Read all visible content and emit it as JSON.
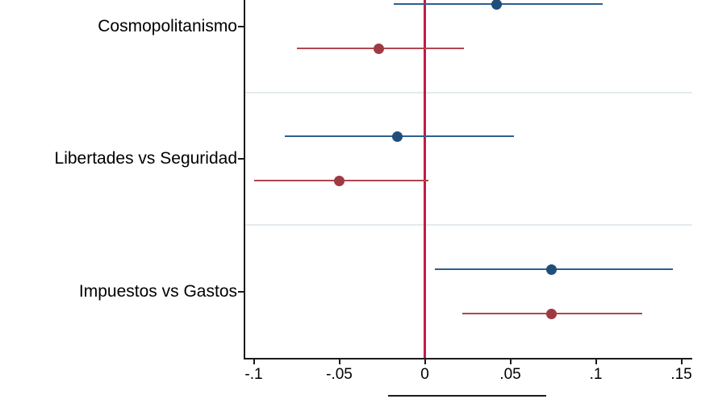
{
  "chart_data": {
    "type": "scatter",
    "subtype": "coefficient-plot-with-confidence-intervals",
    "title": "",
    "xlabel": "",
    "ylabel": "",
    "categories": [
      "Cosmopolitanismo",
      "Libertades vs Seguridad",
      "Impuestos vs Gastos"
    ],
    "series": [
      {
        "key": "navy",
        "line_color": "#2e5f8f",
        "marker_color": "#1f4e79",
        "points": [
          {
            "category": "Cosmopolitanismo",
            "estimate": 0.042,
            "ci_low": -0.018,
            "ci_high": 0.104
          },
          {
            "category": "Libertades vs Seguridad",
            "estimate": -0.016,
            "ci_low": -0.082,
            "ci_high": 0.052
          },
          {
            "category": "Impuestos vs Gastos",
            "estimate": 0.074,
            "ci_low": 0.006,
            "ci_high": 0.145
          }
        ]
      },
      {
        "key": "maroon",
        "line_color": "#ae4750",
        "marker_color": "#9e3a43",
        "points": [
          {
            "category": "Cosmopolitanismo",
            "estimate": -0.027,
            "ci_low": -0.075,
            "ci_high": 0.023
          },
          {
            "category": "Libertades vs Seguridad",
            "estimate": -0.05,
            "ci_low": -0.1,
            "ci_high": 0.002
          },
          {
            "category": "Impuestos vs Gastos",
            "estimate": 0.074,
            "ci_low": 0.022,
            "ci_high": 0.127
          }
        ]
      }
    ],
    "x_axis": {
      "tick_labels": [
        "-.1",
        "-.05",
        "0",
        ".05",
        ".1",
        ".15"
      ],
      "tick_values": [
        -0.1,
        -0.05,
        0,
        0.05,
        0.1,
        0.15
      ],
      "range": [
        -0.105,
        0.156
      ]
    },
    "zero_line": {
      "value": 0,
      "color": "#c41a44"
    },
    "grid": "horizontal separators between categories",
    "legend": "legend box cut off at bottom edge (only top border visible)"
  },
  "colors": {
    "background": "#ffffff",
    "axis": "#1b1b1b",
    "gridline": "#e4ebee",
    "zero_line": "#c41a44",
    "navy_series": "#1f4e79",
    "maroon_series": "#9e3a43"
  }
}
